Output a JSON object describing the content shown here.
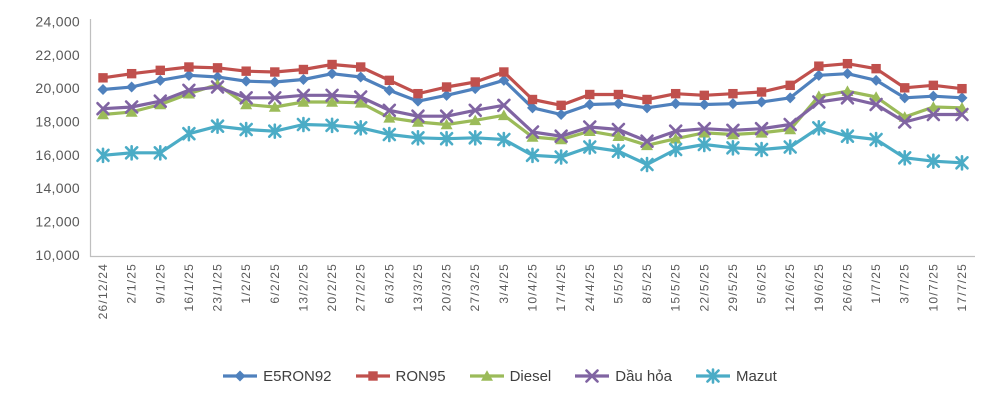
{
  "chart_data": {
    "type": "line",
    "title": "",
    "grid": false,
    "legend_position": "bottom",
    "axis_line_color": "#BFBFBF",
    "tick_label_color": "#595959",
    "categories": [
      "26/12/24",
      "2/1/25",
      "9/1/25",
      "16/1/25",
      "23/1/25",
      "1/2/25",
      "6/2/25",
      "13/2/25",
      "20/2/25",
      "27/2/25",
      "6/3/25",
      "13/3/25",
      "20/3/25",
      "27/3/25",
      "3/4/25",
      "10/4/25",
      "17/4/25",
      "24/4/25",
      "5/5/25",
      "8/5/25",
      "15/5/25",
      "22/5/25",
      "29/5/25",
      "5/6/25",
      "12/6/25",
      "19/6/25",
      "26/6/25",
      "1/7/25",
      "3/7/25",
      "10/7/25",
      "17/7/25"
    ],
    "series": [
      {
        "name": "E5RON92",
        "color": "#4F81BD",
        "marker": "diamond",
        "values": [
          19950,
          20100,
          20500,
          20800,
          20700,
          20450,
          20400,
          20550,
          20900,
          20700,
          19900,
          19250,
          19600,
          20000,
          20500,
          18850,
          18450,
          19050,
          19100,
          18850,
          19100,
          19050,
          19100,
          19200,
          19450,
          20800,
          20900,
          20500,
          19450,
          19550,
          19450
        ]
      },
      {
        "name": "RON95",
        "color": "#C0504D",
        "marker": "square",
        "values": [
          20650,
          20900,
          21100,
          21300,
          21250,
          21050,
          21000,
          21150,
          21450,
          21300,
          20500,
          19700,
          20100,
          20400,
          21000,
          19350,
          19000,
          19650,
          19650,
          19350,
          19700,
          19600,
          19700,
          19800,
          20200,
          21350,
          21500,
          21200,
          20050,
          20200,
          20000
        ]
      },
      {
        "name": "Diesel",
        "color": "#9BBB59",
        "marker": "triangle",
        "values": [
          18450,
          18600,
          19050,
          19700,
          20250,
          19050,
          18900,
          19200,
          19200,
          19150,
          18250,
          18000,
          17850,
          18100,
          18400,
          17100,
          16950,
          17450,
          17150,
          16600,
          17000,
          17350,
          17250,
          17350,
          17550,
          19550,
          19850,
          19500,
          18300,
          18900,
          18850
        ]
      },
      {
        "name": "Dầu hỏa",
        "color": "#8064A2",
        "marker": "x",
        "values": [
          18800,
          18900,
          19250,
          19900,
          20100,
          19450,
          19450,
          19600,
          19600,
          19500,
          18700,
          18350,
          18350,
          18700,
          19000,
          17400,
          17150,
          17700,
          17550,
          16850,
          17450,
          17600,
          17500,
          17600,
          17850,
          19200,
          19450,
          19050,
          18000,
          18450,
          18450
        ]
      },
      {
        "name": "Mazut",
        "color": "#4BACC6",
        "marker": "asterisk",
        "values": [
          16000,
          16150,
          16150,
          17300,
          17750,
          17550,
          17450,
          17850,
          17800,
          17650,
          17250,
          17050,
          17000,
          17050,
          16950,
          16000,
          15900,
          16500,
          16250,
          15450,
          16350,
          16650,
          16450,
          16350,
          16500,
          17650,
          17150,
          16950,
          15850,
          15650,
          15550
        ]
      }
    ],
    "y_axis": {
      "min": 10000,
      "max": 24000,
      "step": 2000,
      "tick_labels": [
        "24,000",
        "22,000",
        "20,000",
        "18,000",
        "16,000",
        "14,000",
        "12,000",
        "10,000"
      ]
    }
  }
}
